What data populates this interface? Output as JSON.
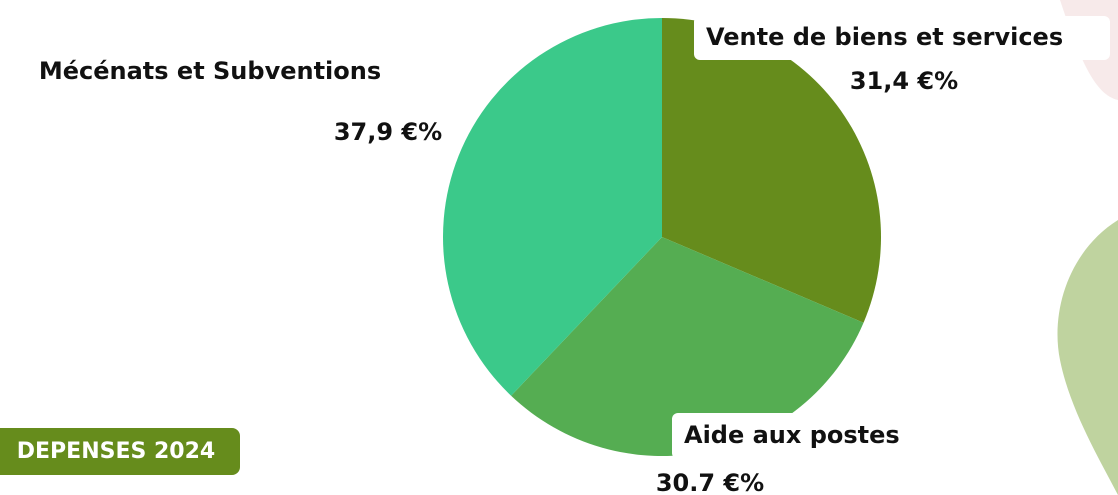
{
  "chart_data": {
    "type": "pie",
    "categories": [
      "Vente de biens et services",
      "Aide aux postes",
      "Mécénats et Subventions"
    ],
    "values": [
      31.4,
      30.7,
      37.9
    ],
    "value_labels": [
      "31,4 €%",
      "30.7 €%",
      "37,9 €%"
    ],
    "colors": [
      "#668c1c",
      "#55ad52",
      "#3bc98a"
    ]
  },
  "badge": "DEPENSES 2024"
}
